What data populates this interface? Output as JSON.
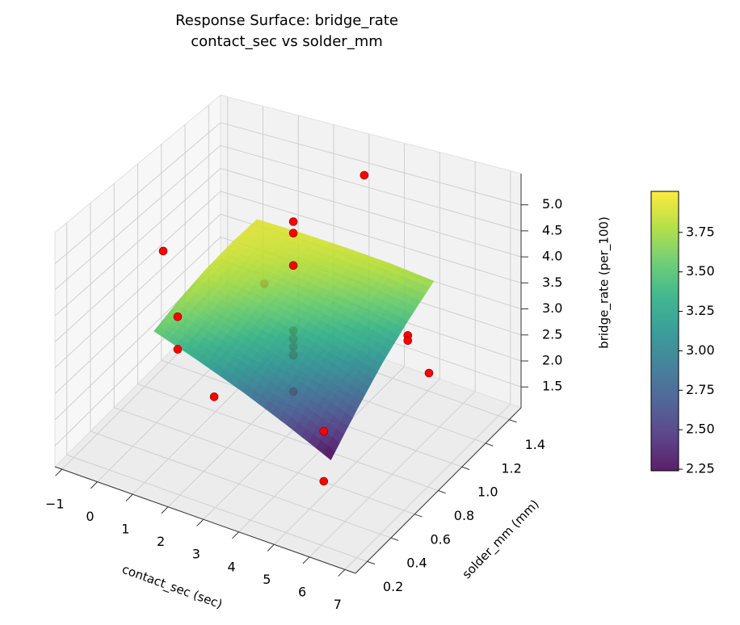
{
  "chart_data": {
    "type": "surface3d",
    "title": "Response Surface: bridge_rate",
    "subtitle": "contact_sec vs solder_mm",
    "xlabel": "contact_sec (sec)",
    "ylabel": "solder_mm (mm)",
    "zlabel": "bridge_rate (per_100)",
    "xlim": [
      -1.2,
      7.3
    ],
    "ylim": [
      0.1,
      1.5
    ],
    "zlim": [
      1.1,
      5.6
    ],
    "xticks": [
      {
        "value": -1,
        "label": "−1"
      },
      0,
      1,
      2,
      3,
      4,
      5,
      6,
      7
    ],
    "yticks": [
      0.2,
      0.4,
      0.6,
      0.8,
      {
        "value": 1,
        "label": "1.0"
      },
      1.2,
      1.4
    ],
    "zticks": [
      1.5,
      {
        "value": 2,
        "label": "2.0"
      },
      2.5,
      {
        "value": 3,
        "label": "3.0"
      },
      3.5,
      {
        "value": 4,
        "label": "4.0"
      },
      4.5,
      {
        "value": 5,
        "label": "5.0"
      }
    ],
    "grid": true,
    "surface": {
      "colormap": "viridis",
      "clim": [
        2.24,
        4.01
      ],
      "x": [
        0.7,
        1.95,
        3.2,
        4.45,
        5.7
      ],
      "y": [
        0.37,
        0.59,
        0.8,
        1.02,
        1.24
      ],
      "z": [
        [
          3.54,
          3.24,
          2.92,
          2.57,
          2.2
        ],
        [
          3.71,
          3.49,
          3.24,
          2.96,
          2.66
        ],
        [
          3.83,
          3.68,
          3.5,
          3.3,
          3.07
        ],
        [
          3.9,
          3.82,
          3.72,
          3.59,
          3.43
        ],
        [
          3.92,
          3.91,
          3.88,
          3.83,
          3.74
        ]
      ]
    },
    "colorbar_ticks": [
      2.25,
      {
        "value": 2.5,
        "label": "2.50"
      },
      2.75,
      {
        "value": 3,
        "label": "3.00"
      },
      3.25,
      {
        "value": 3.5,
        "label": "3.50"
      },
      3.75
    ],
    "points": {
      "color": "#ff0000",
      "x": [
        3.2,
        5.4,
        5.4,
        5.7,
        5.1,
        5.1,
        2.3,
        1.27,
        1.27,
        -0.48,
        1.04,
        3.2,
        3.2,
        3.2,
        3.2,
        3.2,
        3.2,
        3.2,
        3.2
      ],
      "y": [
        1.4,
        0.4,
        0.4,
        1.2,
        1.2,
        1.2,
        0.4,
        0.4,
        0.4,
        0.8,
        1.2,
        0.8,
        0.8,
        0.8,
        0.8,
        0.8,
        0.8,
        0.8,
        0.8
      ],
      "z": [
        5.0,
        1.69,
        2.59,
        2.06,
        2.65,
        2.55,
        2.57,
        3.25,
        3.87,
        3.97,
        2.76,
        5.27,
        5.05,
        4.43,
        3.18,
        3.02,
        2.87,
        2.71,
        2.01
      ]
    }
  }
}
